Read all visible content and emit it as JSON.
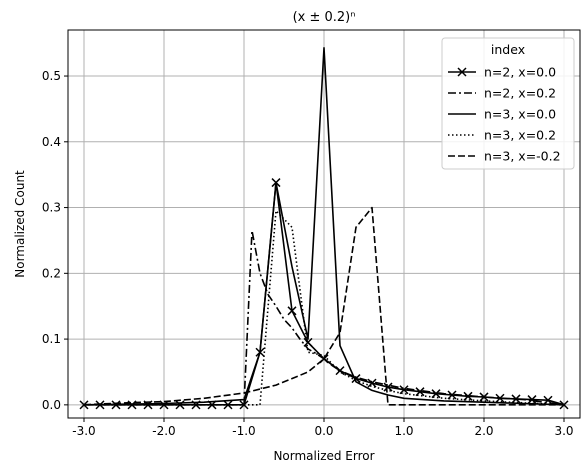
{
  "chart_data": {
    "type": "line",
    "title": "(x ± 0.2)ⁿ",
    "xlabel": "Normalized Error",
    "ylabel": "Normalized Count",
    "xlim": [
      -3.2,
      3.2
    ],
    "ylim": [
      -0.02,
      0.57
    ],
    "xticks": [
      -3.0,
      -2.0,
      -1.0,
      0.0,
      1.0,
      2.0,
      3.0
    ],
    "xtick_labels": [
      "-3.0",
      "-2.0",
      "-1.0",
      "0.0",
      "1.0",
      "2.0",
      "3.0"
    ],
    "yticks": [
      0.0,
      0.1,
      0.2,
      0.3,
      0.4,
      0.5
    ],
    "ytick_labels": [
      "0.0",
      "0.1",
      "0.2",
      "0.3",
      "0.4",
      "0.5"
    ],
    "grid": true,
    "legend": {
      "title": "index",
      "position": "top-right"
    },
    "colors": {
      "series": "#000000",
      "grid": "#b0b0b0",
      "background": "#ffffff"
    },
    "series": [
      {
        "name": "n=2, x=0.0",
        "style": "solid",
        "marker": "x",
        "x": [
          -3.0,
          -2.8,
          -2.6,
          -2.4,
          -2.2,
          -2.0,
          -1.8,
          -1.6,
          -1.4,
          -1.2,
          -1.0,
          -0.8,
          -0.6,
          -0.4,
          -0.2,
          0.0,
          0.2,
          0.4,
          0.6,
          0.8,
          1.0,
          1.2,
          1.4,
          1.6,
          1.8,
          2.0,
          2.2,
          2.4,
          2.6,
          2.8,
          3.0
        ],
        "y": [
          0.0,
          0.0,
          0.0,
          0.0,
          0.0,
          0.0,
          0.0,
          0.0,
          0.0,
          0.0,
          0.0,
          0.08,
          0.338,
          0.143,
          0.095,
          0.07,
          0.052,
          0.04,
          0.033,
          0.027,
          0.023,
          0.02,
          0.017,
          0.015,
          0.013,
          0.012,
          0.01,
          0.009,
          0.008,
          0.007,
          0.0
        ]
      },
      {
        "name": "n=2, x=0.2",
        "style": "dashdot",
        "marker": "",
        "x": [
          -3.0,
          -2.6,
          -2.2,
          -1.8,
          -1.4,
          -1.1,
          -1.0,
          -0.9,
          -0.8,
          -0.7,
          -0.6,
          -0.5,
          -0.4,
          -0.3,
          -0.2,
          -0.1,
          0.0,
          0.1,
          0.2,
          0.4,
          0.6,
          1.0,
          1.5,
          2.0,
          2.5,
          3.0
        ],
        "y": [
          0.0,
          0.0,
          0.0,
          0.0,
          0.0,
          0.0,
          0.0,
          0.265,
          0.2,
          0.168,
          0.15,
          0.13,
          0.117,
          0.1,
          0.085,
          0.078,
          0.07,
          0.06,
          0.052,
          0.042,
          0.035,
          0.025,
          0.017,
          0.012,
          0.008,
          0.0
        ]
      },
      {
        "name": "n=3, x=0.0",
        "style": "solid",
        "marker": "",
        "x": [
          -3.0,
          -2.5,
          -2.0,
          -1.5,
          -1.0,
          -0.8,
          -0.6,
          -0.4,
          -0.2,
          0.0,
          0.2,
          0.4,
          0.6,
          0.8,
          1.0,
          1.5,
          2.0,
          2.5,
          3.0
        ],
        "y": [
          0.0,
          0.001,
          0.002,
          0.004,
          0.008,
          0.08,
          0.338,
          0.21,
          0.1,
          0.543,
          0.09,
          0.035,
          0.022,
          0.015,
          0.01,
          0.006,
          0.004,
          0.002,
          0.0
        ]
      },
      {
        "name": "n=3, x=0.2",
        "style": "dotted",
        "marker": "",
        "x": [
          -3.0,
          -2.5,
          -2.0,
          -1.5,
          -1.0,
          -0.8,
          -0.6,
          -0.4,
          -0.2,
          0.0,
          0.2,
          0.4,
          0.6,
          0.8,
          1.0,
          1.5,
          2.0,
          2.5,
          3.0
        ],
        "y": [
          0.0,
          0.0,
          0.0,
          0.0,
          0.0,
          0.0,
          0.295,
          0.27,
          0.08,
          0.075,
          0.05,
          0.037,
          0.028,
          0.022,
          0.017,
          0.01,
          0.006,
          0.003,
          0.0
        ]
      },
      {
        "name": "n=3, x=-0.2",
        "style": "dashed",
        "marker": "",
        "x": [
          -3.0,
          -2.5,
          -2.0,
          -1.5,
          -1.0,
          -0.6,
          -0.2,
          0.0,
          0.2,
          0.4,
          0.6,
          0.8,
          1.0,
          1.5,
          2.0,
          2.5,
          3.0
        ],
        "y": [
          0.0,
          0.003,
          0.005,
          0.01,
          0.018,
          0.03,
          0.05,
          0.07,
          0.11,
          0.27,
          0.3,
          0.0,
          0.0,
          0.0,
          0.0,
          0.0,
          0.0
        ]
      }
    ]
  }
}
